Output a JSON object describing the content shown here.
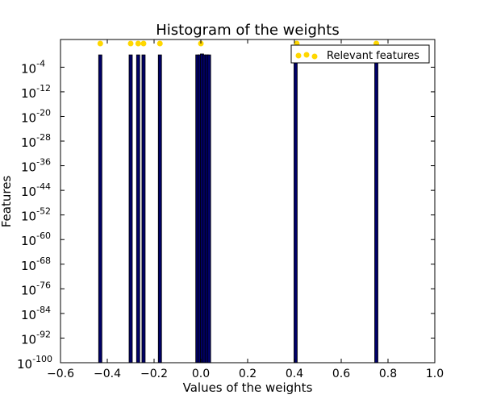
{
  "chart_data": {
    "type": "bar",
    "title": "Histogram of the weights",
    "xlabel": "Values of the weights",
    "ylabel": "Features",
    "xlim": [
      -0.6,
      1.0
    ],
    "ylim_exponent": [
      -100,
      5
    ],
    "yscale": "log",
    "grid": false,
    "legend_placement": "top-right",
    "x_ticks": [
      "−0.6",
      "−0.4",
      "−0.2",
      "0.0",
      "0.2",
      "0.4",
      "0.6",
      "0.8",
      "1.0"
    ],
    "x_tick_values": [
      -0.6,
      -0.4,
      -0.2,
      0.0,
      0.2,
      0.4,
      0.6,
      0.8,
      1.0
    ],
    "y_tick_exponents": [
      -100,
      -92,
      -84,
      -76,
      -68,
      -60,
      -52,
      -44,
      -36,
      -28,
      -20,
      -12,
      -4
    ],
    "y_tick_base": "10",
    "bars": [
      {
        "x": -0.43,
        "count": 1
      },
      {
        "x": -0.3,
        "count": 1
      },
      {
        "x": -0.268,
        "count": 1
      },
      {
        "x": -0.245,
        "count": 1
      },
      {
        "x": -0.175,
        "count": 1
      },
      {
        "x": -0.015,
        "count": 1
      },
      {
        "x": -0.005,
        "count": 1
      },
      {
        "x": 0.005,
        "count": 2
      },
      {
        "x": 0.015,
        "count": 1
      },
      {
        "x": 0.025,
        "count": 1
      },
      {
        "x": 0.035,
        "count": 1
      },
      {
        "x": 0.405,
        "count": 1
      },
      {
        "x": 0.75,
        "count": 1
      }
    ],
    "relevant_features": [
      -0.43,
      -0.3,
      -0.268,
      -0.245,
      -0.175,
      0.0,
      0.41,
      0.75
    ],
    "legend": {
      "label": "Relevant features"
    },
    "colors": {
      "bar_fill": "#000066",
      "marker": "#ffd700",
      "axes": "#000000"
    }
  }
}
